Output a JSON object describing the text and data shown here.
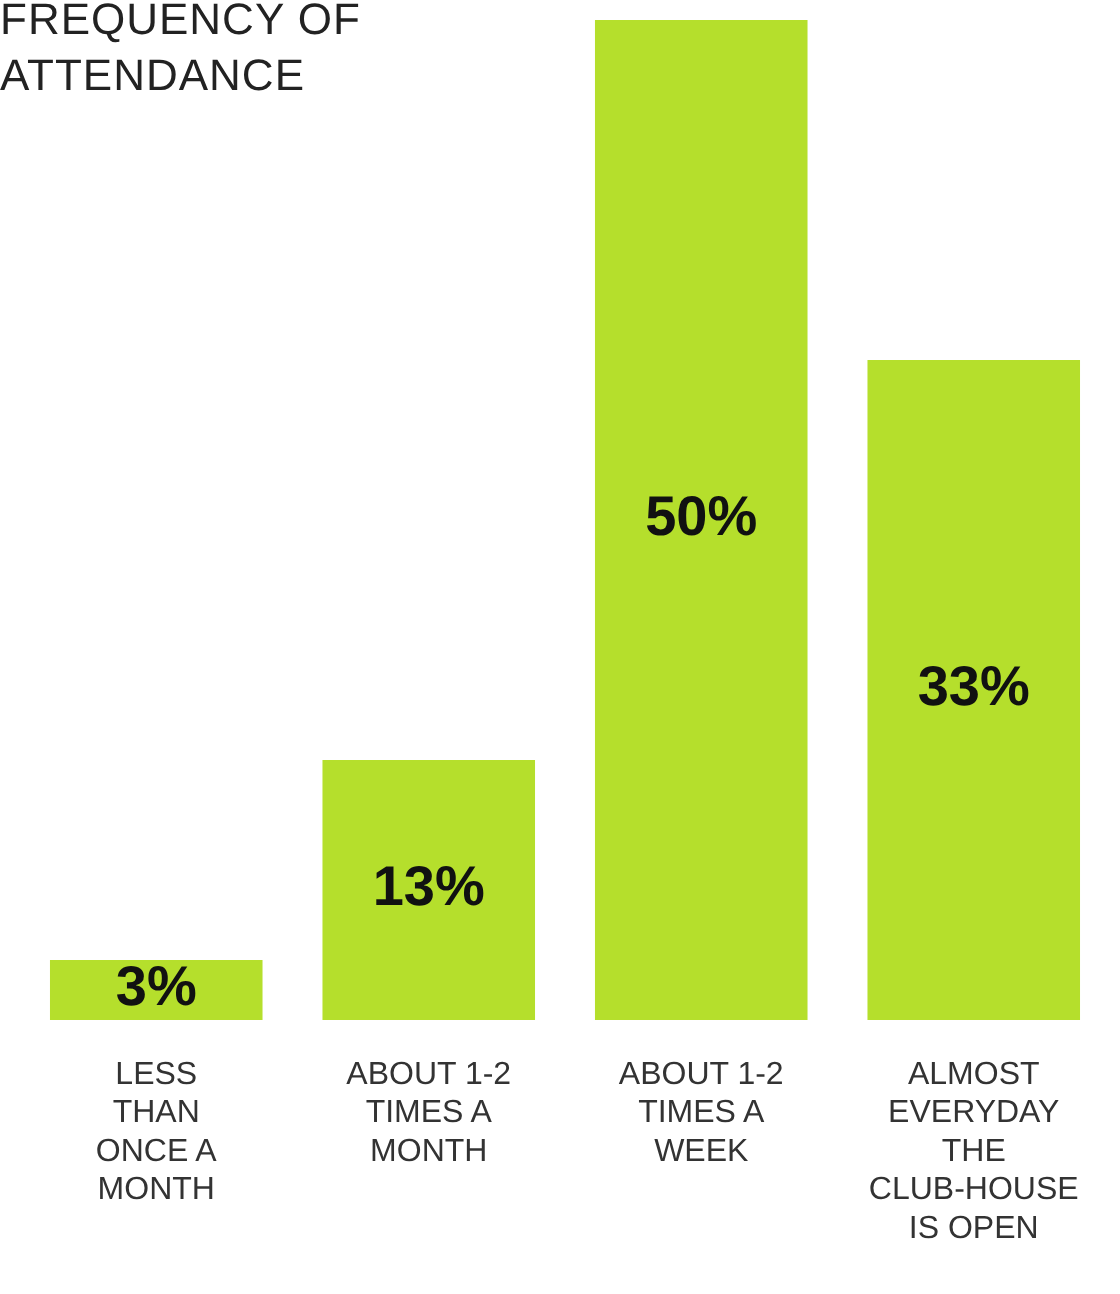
{
  "chart_data": {
    "type": "bar",
    "title": "FREQUENCY OF ATTENDANCE",
    "categories": [
      "LESS THAN ONCE A MONTH",
      "ABOUT 1-2 TIMES A MONTH",
      "ABOUT 1-2 TIMES A WEEK",
      "ALMOST EVERYDAY THE CLUB-HOUSE IS OPEN"
    ],
    "values": [
      3,
      13,
      50,
      33
    ],
    "value_labels": [
      "3%",
      "13%",
      "50%",
      "33%"
    ],
    "color": "#b5df2c",
    "grid": false,
    "legend": false
  }
}
